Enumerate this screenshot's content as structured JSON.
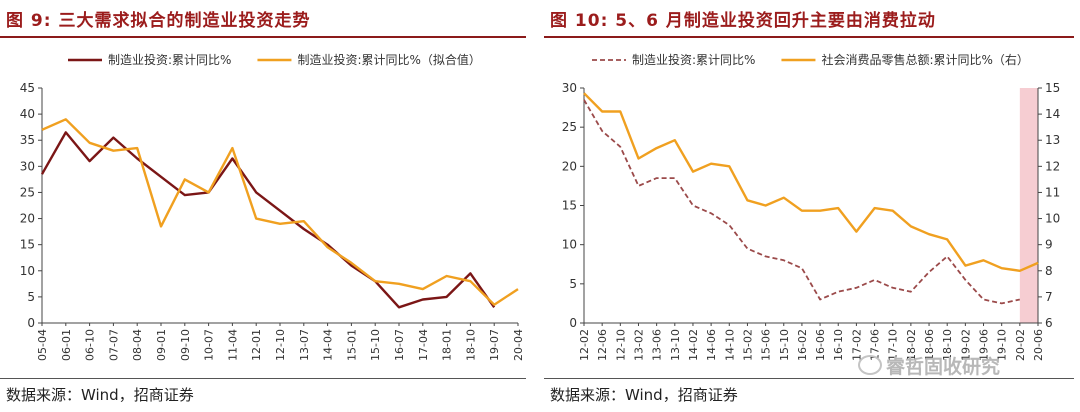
{
  "watermark": "睿哲固收研究",
  "chart_data": [
    {
      "type": "line",
      "title": "图 9:  三大需求拟合的制造业投资走势",
      "source": "数据来源：Wind，招商证券",
      "x": [
        "05-04",
        "06-01",
        "06-10",
        "07-07",
        "08-04",
        "09-01",
        "09-10",
        "10-07",
        "11-04",
        "12-01",
        "12-10",
        "13-07",
        "14-04",
        "15-01",
        "15-10",
        "16-07",
        "17-04",
        "18-01",
        "18-10",
        "19-07",
        "20-04"
      ],
      "ylim": [
        0,
        45
      ],
      "yticks": [
        0,
        5,
        10,
        15,
        20,
        25,
        30,
        35,
        40,
        45
      ],
      "legend_position": "top",
      "grid": false,
      "series": [
        {
          "name": "制造业投资:累计同比%",
          "color": "#7b1616",
          "values": [
            28.5,
            36.5,
            31.0,
            35.5,
            31.5,
            28.0,
            24.5,
            25.0,
            31.5,
            25.0,
            21.5,
            18.0,
            15.0,
            11.0,
            8.0,
            3.0,
            4.5,
            5.0,
            9.5,
            3.0,
            null
          ]
        },
        {
          "name": "制造业投资:累计同比%（拟合值）",
          "color": "#f0a020",
          "values": [
            37.0,
            39.0,
            34.5,
            33.0,
            33.5,
            18.5,
            27.5,
            25.0,
            33.5,
            20.0,
            19.0,
            19.5,
            14.5,
            11.5,
            8.0,
            7.5,
            6.5,
            9.0,
            8.0,
            3.5,
            6.5
          ]
        }
      ]
    },
    {
      "type": "line",
      "title": "图 10:  5、6 月制造业投资回升主要由消费拉动",
      "source": "数据来源：Wind，招商证券",
      "x": [
        "12-02",
        "12-06",
        "12-10",
        "13-02",
        "13-06",
        "13-10",
        "14-02",
        "14-06",
        "14-10",
        "15-02",
        "15-06",
        "15-10",
        "16-02",
        "16-06",
        "16-10",
        "17-02",
        "17-06",
        "17-10",
        "18-02",
        "18-06",
        "18-10",
        "19-02",
        "19-06",
        "19-10",
        "20-02",
        "20-06"
      ],
      "ylim": [
        0,
        30
      ],
      "yticks": [
        0,
        5,
        10,
        15,
        20,
        25,
        30
      ],
      "ylim_right": [
        6,
        15
      ],
      "yticks_right": [
        6,
        7,
        8,
        9,
        10,
        11,
        12,
        13,
        14,
        15
      ],
      "legend_position": "top",
      "grid": false,
      "highlight_x_range": [
        "20-02",
        "20-06"
      ],
      "highlight_color": "#f6cdd2",
      "series": [
        {
          "name": "制造业投资:累计同比%",
          "color": "#9b4a4a",
          "dashed": true,
          "axis": "left",
          "values": [
            28.5,
            24.5,
            22.5,
            17.5,
            18.5,
            18.5,
            15.0,
            14.0,
            12.5,
            9.5,
            8.5,
            8.0,
            7.0,
            3.0,
            4.0,
            4.5,
            5.5,
            4.5,
            4.0,
            6.5,
            8.5,
            5.5,
            3.0,
            2.5,
            3.0,
            null
          ]
        },
        {
          "name": "社会消费品零售总额:累计同比%（右）",
          "color": "#f0a020",
          "dashed": false,
          "axis": "right",
          "values": [
            14.8,
            14.1,
            14.1,
            12.3,
            12.7,
            13.0,
            11.8,
            12.1,
            12.0,
            10.7,
            10.5,
            10.8,
            10.3,
            10.3,
            10.4,
            9.5,
            10.4,
            10.3,
            9.7,
            9.4,
            9.2,
            8.2,
            8.4,
            8.1,
            8.0,
            8.3
          ]
        }
      ]
    }
  ]
}
